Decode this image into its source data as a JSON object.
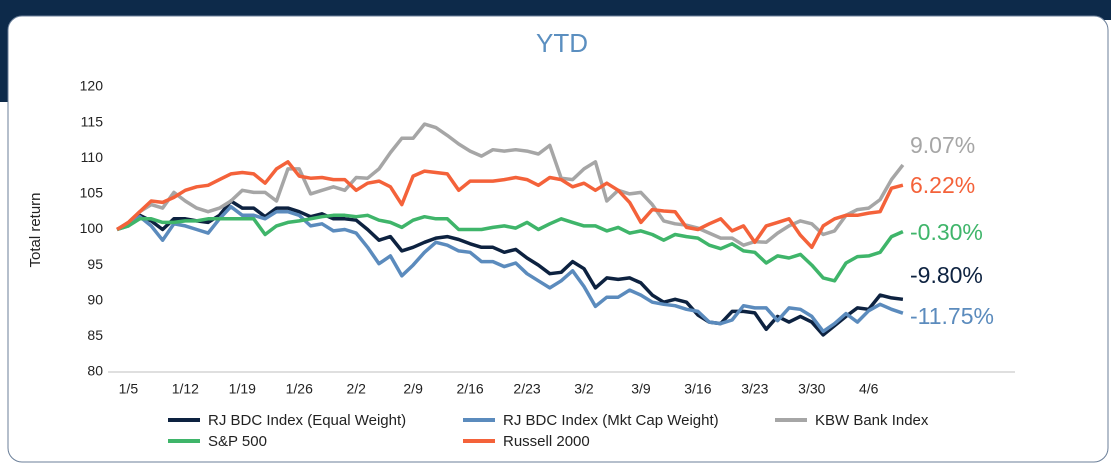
{
  "chart_data": {
    "type": "line",
    "title": "YTD",
    "y_label": "Total return",
    "categories": [
      null,
      "1/5",
      null,
      null,
      null,
      null,
      "1/12",
      null,
      null,
      null,
      null,
      "1/19",
      null,
      null,
      null,
      null,
      "1/26",
      null,
      null,
      null,
      null,
      "2/2",
      null,
      null,
      null,
      null,
      "2/9",
      null,
      null,
      null,
      null,
      "2/16",
      null,
      null,
      null,
      null,
      "2/23",
      null,
      null,
      null,
      null,
      "3/2",
      null,
      null,
      null,
      null,
      "3/9",
      null,
      null,
      null,
      null,
      "3/16",
      null,
      null,
      null,
      null,
      "3/23",
      null,
      null,
      null,
      null,
      "3/30",
      null,
      null,
      null,
      null,
      "4/6",
      null,
      null,
      null
    ],
    "ylim": [
      80,
      120
    ],
    "yticks": [
      80,
      85,
      90,
      95,
      100,
      105,
      110,
      115,
      120
    ],
    "grid": false,
    "series": [
      {
        "name": "RJ BDC Index (Equal Weight)",
        "color": "#0d2240",
        "end_label": "-9.80%",
        "values": [
          100,
          100.8,
          102,
          101.2,
          100,
          101.5,
          101.5,
          101.2,
          101,
          102,
          104,
          103,
          103,
          101.8,
          103,
          103,
          102.5,
          101.8,
          102.2,
          101.5,
          101.5,
          101.3,
          100,
          98.5,
          99,
          97,
          97.5,
          98.2,
          98.8,
          99,
          98.6,
          98,
          97.5,
          97.5,
          96.8,
          97.2,
          96,
          95,
          93.8,
          94,
          95.5,
          94.5,
          91.8,
          93.2,
          93,
          93.2,
          92.5,
          90.8,
          89.8,
          90.2,
          89.8,
          88,
          87,
          86.8,
          88.5,
          88.5,
          88.3,
          86,
          87.8,
          87,
          87.8,
          87,
          85.2,
          86.5,
          87.8,
          89,
          88.8,
          90.8,
          90.4,
          90.2
        ]
      },
      {
        "name": "RJ BDC Index (Mkt Cap Weight)",
        "color": "#5b8bbd",
        "end_label": "-11.75%",
        "values": [
          100,
          100.5,
          101.8,
          100.5,
          98.5,
          100.8,
          100.5,
          100,
          99.5,
          101.5,
          103.2,
          102,
          102,
          101.5,
          102.5,
          102.5,
          102,
          100.5,
          100.8,
          99.8,
          100,
          99.5,
          97.5,
          95.2,
          96.3,
          93.5,
          95,
          96.8,
          98.2,
          97.8,
          97,
          96.8,
          95.5,
          95.5,
          94.8,
          95.3,
          93.8,
          92.8,
          91.8,
          92.8,
          94.2,
          92,
          89.2,
          90.5,
          90.5,
          91.5,
          90.8,
          89.8,
          89.5,
          89.3,
          88.8,
          88.5,
          87,
          86.8,
          87.3,
          89.3,
          89,
          89,
          87.2,
          89,
          88.8,
          87.8,
          85.7,
          86.8,
          88.2,
          87,
          88.6,
          89.5,
          88.8,
          88.25
        ]
      },
      {
        "name": "KBW Bank Index",
        "color": "#a6a6a6",
        "end_label": "9.07%",
        "values": [
          100,
          101,
          102.5,
          103.5,
          103,
          105.2,
          104,
          103,
          102.5,
          103,
          104,
          105.5,
          105.2,
          105.2,
          104,
          108.5,
          108.5,
          105,
          105.5,
          106,
          105.5,
          107.3,
          107.2,
          108.5,
          110.8,
          112.8,
          112.8,
          114.8,
          114.3,
          113.2,
          112,
          111,
          110.3,
          111.2,
          111,
          111.2,
          111,
          110.6,
          111.8,
          107.2,
          107,
          108.5,
          109.5,
          104,
          105.5,
          105,
          105.2,
          103.5,
          101.2,
          100.8,
          100.6,
          100.2,
          99.5,
          98.8,
          98.8,
          97.8,
          98.3,
          98.2,
          99.5,
          100.5,
          101.2,
          100.8,
          99.3,
          99.8,
          102,
          102.8,
          103,
          104.2,
          107,
          109.07
        ]
      },
      {
        "name": "S&P 500",
        "color": "#3fb56a",
        "end_label": "-0.30%",
        "values": [
          100,
          100.5,
          101.5,
          101.5,
          101,
          101,
          101.2,
          101.2,
          101.5,
          101.5,
          101.5,
          101.5,
          101.5,
          99.3,
          100.5,
          101,
          101.2,
          101.5,
          101.8,
          102,
          102,
          101.8,
          102,
          101.3,
          101,
          100.3,
          101.3,
          101.8,
          101.5,
          101.5,
          100,
          100,
          100,
          100.3,
          100.5,
          100.2,
          101,
          100,
          100.8,
          101.5,
          101,
          100.5,
          100.5,
          99.8,
          100.3,
          99.5,
          99.8,
          99.3,
          98.5,
          99.3,
          99,
          98.8,
          97.8,
          97.3,
          98,
          97,
          96.8,
          95.3,
          96.3,
          96,
          96.5,
          95,
          93.2,
          92.8,
          95.3,
          96.2,
          96.3,
          96.8,
          99,
          99.7
        ]
      },
      {
        "name": "Russell 2000",
        "color": "#f4623a",
        "end_label": "6.22%",
        "values": [
          100,
          101,
          102.5,
          104,
          103.8,
          104.5,
          105.5,
          106,
          106.2,
          107,
          107.8,
          108,
          107.8,
          106.5,
          108.5,
          109.5,
          107.5,
          107.2,
          107.3,
          107,
          107,
          105.5,
          106.5,
          106.8,
          106,
          103.5,
          107.5,
          108.2,
          108,
          107.8,
          105.5,
          106.8,
          106.8,
          106.8,
          107,
          107.3,
          107,
          106.2,
          107.3,
          107,
          106,
          106.5,
          105.5,
          106.5,
          105.5,
          103.8,
          101,
          102.8,
          102.6,
          102.5,
          100.3,
          100,
          100.8,
          101.5,
          99.8,
          100.5,
          98.2,
          100.5,
          101,
          101.5,
          99.2,
          97.5,
          100.5,
          101.5,
          102,
          102,
          102.3,
          102.5,
          105.8,
          106.22
        ]
      }
    ]
  }
}
